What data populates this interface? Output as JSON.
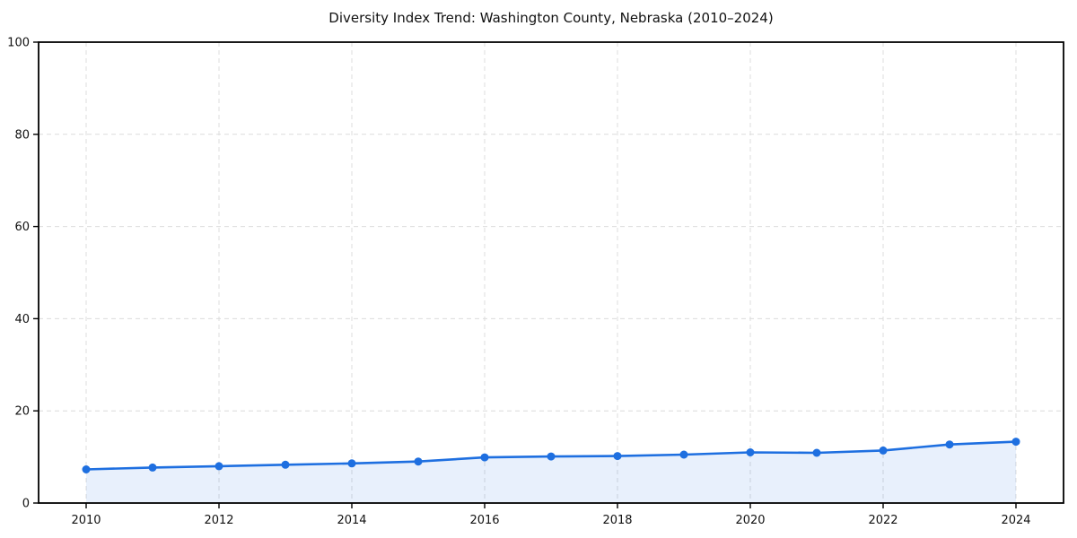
{
  "chart_data": {
    "type": "line",
    "title": "Diversity Index Trend: Washington County, Nebraska (2010–2024)",
    "x": [
      2010,
      2011,
      2012,
      2013,
      2014,
      2015,
      2016,
      2017,
      2018,
      2019,
      2020,
      2021,
      2022,
      2023,
      2024
    ],
    "series": [
      {
        "name": "Diversity Index",
        "values": [
          7.3,
          7.7,
          8.0,
          8.3,
          8.6,
          9.0,
          9.9,
          10.1,
          10.2,
          10.5,
          11.0,
          10.9,
          11.4,
          12.7,
          13.3
        ]
      }
    ],
    "xlabel": "",
    "ylabel": "",
    "xticks": [
      2010,
      2012,
      2014,
      2016,
      2018,
      2020,
      2022,
      2024
    ],
    "yticks": [
      0,
      20,
      40,
      60,
      80,
      100
    ],
    "xlim": [
      2010,
      2024
    ],
    "ylim": [
      0,
      100
    ],
    "grid": "dashed",
    "legend_position": "none",
    "colors": {
      "line": "#1e6fe0",
      "marker": "#1e6fe0",
      "area_fill": "rgba(30, 111, 224, 0.10)",
      "grid": "#dcdcdc",
      "axis_border": "#000000",
      "text": "#111111"
    },
    "marker_style": "circle",
    "marker_radius": 4.5,
    "line_width": 2.6
  }
}
